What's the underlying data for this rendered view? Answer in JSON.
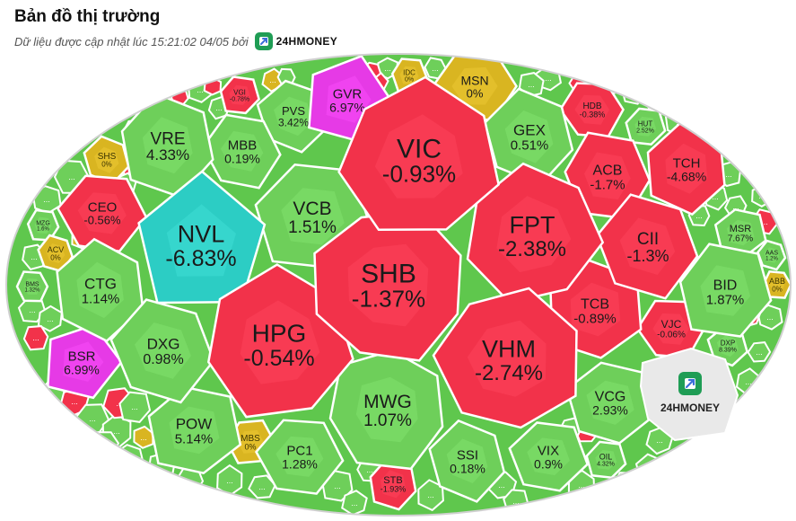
{
  "header": {
    "title": "Bản đồ thị trường",
    "subtitle": "Dữ liệu được cập nhật lúc 15:21:02 04/05 bởi",
    "brand": "24HMONEY"
  },
  "colors": {
    "up": "#6ecf5a",
    "down": "#f2324a",
    "ref": "#d9b521",
    "ceiling": "#e63ae6",
    "floor": "#2ccdc4",
    "empty": "#e3e3e3"
  },
  "watermark": {
    "label": "24HMONEY",
    "icon": "24hmoney-logo-icon"
  },
  "chart_data": {
    "type": "treemap",
    "unit": "%",
    "items": [
      {
        "ticker": "VIC",
        "change": -0.93,
        "label": "-0.93%",
        "status": "down"
      },
      {
        "ticker": "SHB",
        "change": -1.37,
        "label": "-1.37%",
        "status": "down"
      },
      {
        "ticker": "FPT",
        "change": -2.38,
        "label": "-2.38%",
        "status": "down"
      },
      {
        "ticker": "HPG",
        "change": -0.54,
        "label": "-0.54%",
        "status": "down"
      },
      {
        "ticker": "VHM",
        "change": -2.74,
        "label": "-2.74%",
        "status": "down"
      },
      {
        "ticker": "NVL",
        "change": -6.83,
        "label": "-6.83%",
        "status": "floor"
      },
      {
        "ticker": "VCB",
        "change": 1.51,
        "label": "1.51%",
        "status": "up"
      },
      {
        "ticker": "MWG",
        "change": 1.07,
        "label": "1.07%",
        "status": "up"
      },
      {
        "ticker": "GVR",
        "change": 6.97,
        "label": "6.97%",
        "status": "ceiling"
      },
      {
        "ticker": "VRE",
        "change": 4.33,
        "label": "4.33%",
        "status": "up"
      },
      {
        "ticker": "MBB",
        "change": 0.19,
        "label": "0.19%",
        "status": "up"
      },
      {
        "ticker": "PVS",
        "change": 3.42,
        "label": "3.42%",
        "status": "up"
      },
      {
        "ticker": "MSN",
        "change": 0,
        "label": "0%",
        "status": "ref"
      },
      {
        "ticker": "GEX",
        "change": 0.51,
        "label": "0.51%",
        "status": "up"
      },
      {
        "ticker": "ACB",
        "change": -1.7,
        "label": "-1.7%",
        "status": "down"
      },
      {
        "ticker": "TCH",
        "change": -4.68,
        "label": "-4.68%",
        "status": "down"
      },
      {
        "ticker": "CII",
        "change": -1.3,
        "label": "-1.3%",
        "status": "down"
      },
      {
        "ticker": "TCB",
        "change": -0.89,
        "label": "-0.89%",
        "status": "down"
      },
      {
        "ticker": "BID",
        "change": 1.87,
        "label": "1.87%",
        "status": "up"
      },
      {
        "ticker": "VJC",
        "change": -0.06,
        "label": "-0.06%",
        "status": "down"
      },
      {
        "ticker": "VCG",
        "change": 2.93,
        "label": "2.93%",
        "status": "up"
      },
      {
        "ticker": "VIX",
        "change": 0.9,
        "label": "0.9%",
        "status": "up"
      },
      {
        "ticker": "SSI",
        "change": 0.18,
        "label": "0.18%",
        "status": "up"
      },
      {
        "ticker": "PC1",
        "change": 1.28,
        "label": "1.28%",
        "status": "up"
      },
      {
        "ticker": "POW",
        "change": 5.14,
        "label": "5.14%",
        "status": "up"
      },
      {
        "ticker": "DXG",
        "change": 0.98,
        "label": "0.98%",
        "status": "up"
      },
      {
        "ticker": "CTG",
        "change": 1.14,
        "label": "1.14%",
        "status": "up"
      },
      {
        "ticker": "CEO",
        "change": -0.56,
        "label": "-0.56%",
        "status": "down"
      },
      {
        "ticker": "BSR",
        "change": 6.99,
        "label": "6.99%",
        "status": "ceiling"
      },
      {
        "ticker": "STB",
        "change": -1.93,
        "label": "-1.93%",
        "status": "down"
      },
      {
        "ticker": "MBS",
        "change": 0,
        "label": "0%",
        "status": "ref"
      },
      {
        "ticker": "OIL",
        "change": 4.32,
        "label": "4.32%",
        "status": "up"
      },
      {
        "ticker": "DXP",
        "change": 8.39,
        "label": "8.39%",
        "status": "up"
      },
      {
        "ticker": "ABB",
        "change": 0,
        "label": "0%",
        "status": "ref"
      },
      {
        "ticker": "AAS",
        "change": 1.2,
        "label": "1.2%",
        "status": "up"
      },
      {
        "ticker": "MSR",
        "change": 7.67,
        "label": "7.67%",
        "status": "up"
      },
      {
        "ticker": "HUT",
        "change": 2.52,
        "label": "2.52%",
        "status": "up"
      },
      {
        "ticker": "HDB",
        "change": -0.38,
        "label": "-0.38%",
        "status": "down"
      },
      {
        "ticker": "IDC",
        "change": 0,
        "label": "0%",
        "status": "ref"
      },
      {
        "ticker": "VGI",
        "change": -0.78,
        "label": "-0.78%",
        "status": "down"
      },
      {
        "ticker": "SHS",
        "change": 0,
        "label": "0%",
        "status": "ref"
      },
      {
        "ticker": "MZG",
        "change": 1.6,
        "label": "1.6%",
        "status": "up"
      },
      {
        "ticker": "ACV",
        "change": 0,
        "label": "0%",
        "status": "ref"
      },
      {
        "ticker": "BMS",
        "change": 1.32,
        "label": "1.32%",
        "status": "up"
      }
    ],
    "minor_label": "..."
  }
}
